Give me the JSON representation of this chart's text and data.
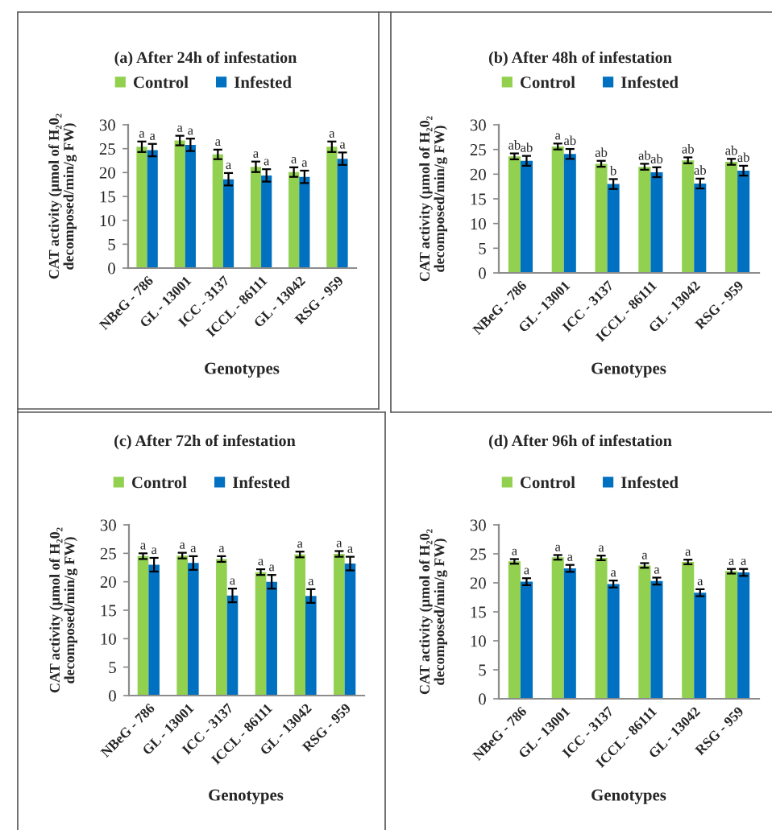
{
  "chart_data": [
    {
      "type": "bar",
      "title": "(a) After 24h of infestation",
      "xlabel": "Genotypes",
      "ylabel": "CAT activity (µmol of H₂0₂\ndecomposed/min/g FW)",
      "categories": [
        "NBeG - 786",
        "GL - 13001",
        "ICC - 3137",
        "ICCL - 86111",
        "GL - 13042",
        "RSG - 959"
      ],
      "series": [
        {
          "name": "Control",
          "color": "#92d050",
          "values": [
            25.4,
            26.7,
            23.8,
            21.2,
            20.1,
            25.4
          ],
          "errors": [
            1.1,
            1.0,
            1.0,
            1.1,
            1.0,
            1.1
          ],
          "value_labels": [
            "a",
            "a",
            "a",
            "a",
            "a",
            "a"
          ]
        },
        {
          "name": "Infested",
          "color": "#0070c0",
          "values": [
            24.7,
            25.8,
            18.6,
            19.4,
            19.1,
            22.9
          ],
          "errors": [
            1.3,
            1.3,
            1.3,
            1.3,
            1.3,
            1.3
          ],
          "value_labels": [
            "a",
            "a",
            "a",
            "a",
            "a",
            "a"
          ]
        }
      ],
      "ylim": [
        0,
        30
      ],
      "yticks": [
        0,
        5,
        10,
        15,
        20,
        25,
        30
      ],
      "legend": "top",
      "grid": false
    },
    {
      "type": "bar",
      "title": "(b) After 48h of infestation",
      "xlabel": "Genotypes",
      "ylabel": "CAT activity (µmol of H₂0₂\ndecomposed/min/g FW)",
      "categories": [
        "NBeG - 786",
        "GL - 13001",
        "ICC - 3137",
        "ICCL - 86111",
        "GL - 13042",
        "RSG - 959"
      ],
      "series": [
        {
          "name": "Control",
          "color": "#92d050",
          "values": [
            23.6,
            25.6,
            22.1,
            21.5,
            22.8,
            22.5
          ],
          "errors": [
            0.6,
            0.6,
            0.6,
            0.6,
            0.6,
            0.6
          ],
          "value_labels": [
            "ab",
            "a",
            "ab",
            "ab",
            "ab",
            "ab"
          ]
        },
        {
          "name": "Infested",
          "color": "#0070c0",
          "values": [
            22.7,
            24.1,
            18.0,
            20.4,
            18.1,
            20.7
          ],
          "errors": [
            1.0,
            1.0,
            1.0,
            1.0,
            1.0,
            1.0
          ],
          "value_labels": [
            "ab",
            "ab",
            "b",
            "ab",
            "ab",
            "ab"
          ]
        }
      ],
      "ylim": [
        0,
        30
      ],
      "yticks": [
        0,
        5,
        10,
        15,
        20,
        25,
        30
      ],
      "legend": "top",
      "grid": false
    },
    {
      "type": "bar",
      "title": "(c) After 72h of infestation",
      "xlabel": "Genotypes",
      "ylabel": "CAT activity (µmol of H₂0₂\ndecomposed/min/g FW)",
      "categories": [
        "NBeG - 786",
        "GL - 13001",
        "ICC - 3137",
        "ICCL - 86111",
        "GL - 13042",
        "RSG - 959"
      ],
      "series": [
        {
          "name": "Control",
          "color": "#92d050",
          "values": [
            24.5,
            24.6,
            24.0,
            21.7,
            24.8,
            24.9
          ],
          "errors": [
            0.5,
            0.5,
            0.5,
            0.5,
            0.5,
            0.5
          ],
          "value_labels": [
            "a",
            "a",
            "a",
            "a",
            "a",
            "a"
          ]
        },
        {
          "name": "Infested",
          "color": "#0070c0",
          "values": [
            23.0,
            23.3,
            17.6,
            20.0,
            17.5,
            23.2
          ],
          "errors": [
            1.2,
            1.2,
            1.2,
            1.2,
            1.2,
            1.2
          ],
          "value_labels": [
            "a",
            "a",
            "a",
            "a",
            "a",
            "a"
          ]
        }
      ],
      "ylim": [
        0,
        30
      ],
      "yticks": [
        0,
        5,
        10,
        15,
        20,
        25,
        30
      ],
      "legend": "top",
      "grid": false
    },
    {
      "type": "bar",
      "title": "(d) After 96h of infestation",
      "xlabel": "Genotypes",
      "ylabel": "CAT activity (µmol of H₂0₂\ndecomposed/min/g FW)",
      "categories": [
        "NBeG - 786",
        "GL - 13001",
        "ICC - 3137",
        "ICCL - 86111",
        "GL - 13042",
        "RSG - 959"
      ],
      "series": [
        {
          "name": "Control",
          "color": "#92d050",
          "values": [
            23.7,
            24.4,
            24.3,
            23.0,
            23.6,
            22.0
          ],
          "errors": [
            0.4,
            0.4,
            0.4,
            0.4,
            0.4,
            0.4
          ],
          "value_labels": [
            "a",
            "a",
            "a",
            "a",
            "a",
            "a"
          ]
        },
        {
          "name": "Infested",
          "color": "#0070c0",
          "values": [
            20.2,
            22.5,
            19.8,
            20.3,
            18.3,
            21.8
          ],
          "errors": [
            0.6,
            0.6,
            0.6,
            0.6,
            0.6,
            0.6
          ],
          "value_labels": [
            "a",
            "a",
            "a",
            "a",
            "a",
            "a"
          ]
        }
      ],
      "ylim": [
        0,
        30
      ],
      "yticks": [
        0,
        5,
        10,
        15,
        20,
        25,
        30
      ],
      "legend": "top",
      "grid": false
    }
  ]
}
